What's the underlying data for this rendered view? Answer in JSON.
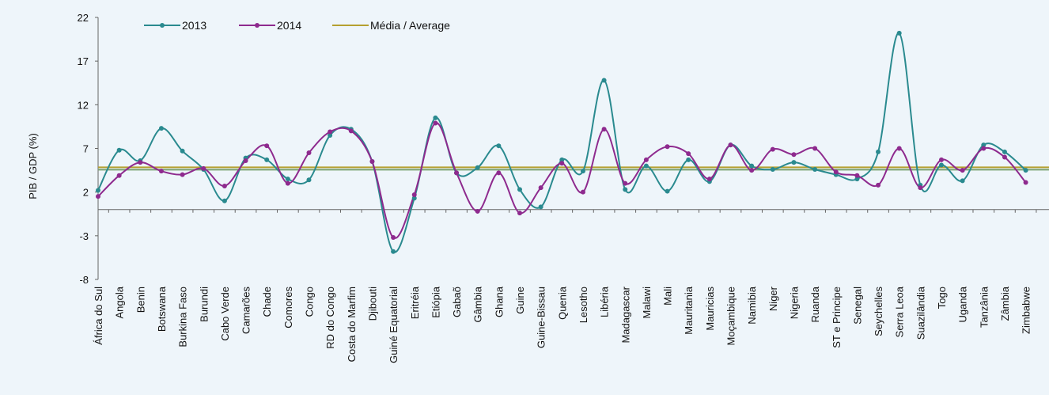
{
  "chart_data": {
    "type": "line",
    "ylabel": "PIB / GDP (%)",
    "ylim": [
      -8,
      22
    ],
    "yticks": [
      22,
      17,
      12,
      7,
      2,
      -3,
      -8
    ],
    "categories": [
      "África do Sul",
      "Angola",
      "Benin",
      "Botswana",
      "Burkina Faso",
      "Burundi",
      "Cabo Verde",
      "Camarões",
      "Chade",
      "Comores",
      "Congo",
      "RD do Congo",
      "Costa do Marfim",
      "Djibouti",
      "Guiné Equatorial",
      "Eritréia",
      "Etiópia",
      "Gabaõ",
      "Gâmbia",
      "Ghana",
      "Guine",
      "Guine-Bissau",
      "Quenia",
      "Lesotho",
      "Libéria",
      "Madagascar",
      "Malawi",
      "Mali",
      "Mauritania",
      "Mauricias",
      "Moçambique",
      "Namibia",
      "Niger",
      "Nigeria",
      "Ruanda",
      "ST e Principe",
      "Senegal",
      "Seychelles",
      "Serra Leoa",
      "Suazilândia",
      "Togo",
      "Uganda",
      "Tanzânia",
      "Zâmbia",
      "Zimbabwe"
    ],
    "series": [
      {
        "name": "2013",
        "color": "#2a8a8f",
        "values": [
          2.2,
          6.8,
          5.6,
          9.3,
          6.7,
          4.6,
          1.0,
          5.9,
          5.7,
          3.5,
          3.4,
          8.5,
          9.2,
          5.5,
          -4.8,
          1.3,
          10.5,
          4.2,
          4.8,
          7.3,
          2.3,
          0.3,
          5.7,
          4.4,
          14.8,
          2.3,
          5.0,
          2.1,
          5.7,
          3.2,
          7.4,
          5.0,
          4.6,
          5.4,
          4.6,
          4.0,
          3.5,
          6.6,
          20.2,
          2.8,
          5.1,
          3.3,
          7.4,
          6.6,
          4.5
        ]
      },
      {
        "name": "2014",
        "color": "#8e2a8e",
        "values": [
          1.5,
          3.9,
          5.4,
          4.4,
          4.0,
          4.7,
          2.7,
          5.6,
          7.3,
          3.0,
          6.5,
          8.9,
          9.0,
          5.5,
          -3.2,
          1.7,
          9.9,
          4.2,
          -0.2,
          4.2,
          -0.4,
          2.5,
          5.3,
          2.0,
          9.2,
          3.0,
          5.7,
          7.2,
          6.4,
          3.5,
          7.4,
          4.5,
          6.9,
          6.3,
          7.0,
          4.3,
          3.9,
          2.8,
          7.0,
          2.5,
          5.7,
          4.5,
          7.0,
          6.0,
          3.1
        ]
      }
    ],
    "average": {
      "name": "Média / Average",
      "value": 4.7,
      "color": "#b5a030",
      "line2_color": "#7aa070"
    }
  }
}
